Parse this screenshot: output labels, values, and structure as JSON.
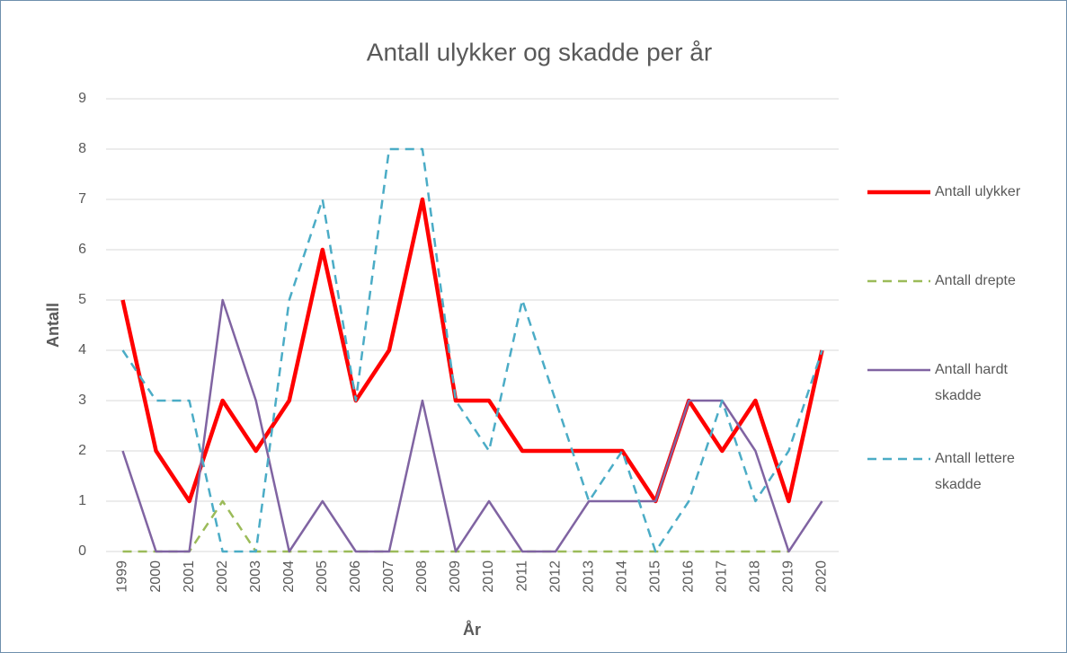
{
  "chart_data": {
    "type": "line",
    "title": "Antall ulykker og skadde per år",
    "x_label": "År",
    "y_label": "Antall",
    "categories": [
      "1999",
      "2000",
      "2001",
      "2002",
      "2003",
      "2004",
      "2005",
      "2006",
      "2007",
      "2008",
      "2009",
      "2010",
      "2011",
      "2012",
      "2013",
      "2014",
      "2015",
      "2016",
      "2017",
      "2018",
      "2019",
      "2020"
    ],
    "series": [
      {
        "name": "Antall ulykker",
        "color": "#ff0000",
        "style": "solid",
        "values": [
          5,
          2,
          1,
          3,
          2,
          3,
          6,
          3,
          4,
          7,
          3,
          3,
          2,
          2,
          2,
          2,
          1,
          3,
          2,
          3,
          1,
          4
        ]
      },
      {
        "name": "Antall drepte",
        "color": "#9bbb59",
        "style": "dashed",
        "values": [
          0,
          0,
          0,
          1,
          0,
          0,
          0,
          0,
          0,
          0,
          0,
          0,
          0,
          0,
          0,
          0,
          0,
          0,
          0,
          0,
          0,
          null
        ]
      },
      {
        "name": "Antall hardt skadde",
        "color": "#8064a2",
        "style": "solid",
        "values": [
          2,
          0,
          0,
          5,
          3,
          0,
          1,
          0,
          0,
          3,
          0,
          1,
          0,
          0,
          1,
          1,
          1,
          3,
          3,
          2,
          0,
          1
        ]
      },
      {
        "name": "Antall lettere skadde",
        "color": "#4bacc6",
        "style": "dashed",
        "values": [
          4,
          3,
          3,
          0,
          0,
          5,
          7,
          3,
          8,
          8,
          3,
          2,
          5,
          3,
          1,
          2,
          0,
          1,
          3,
          1,
          2,
          4
        ]
      }
    ],
    "ylim": [
      0,
      9
    ],
    "yticks": [
      0,
      1,
      2,
      3,
      4,
      5,
      6,
      7,
      8,
      9
    ],
    "grid": true,
    "legend": "right"
  }
}
